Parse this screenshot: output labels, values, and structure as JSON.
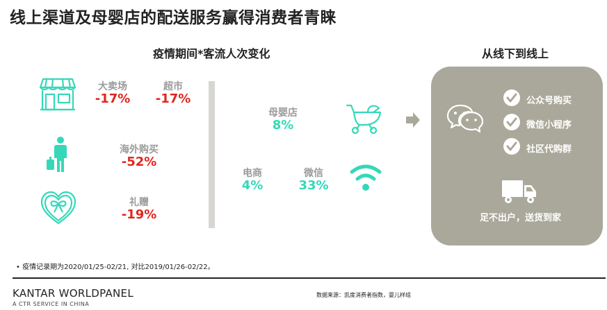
{
  "title": "线上渠道及母婴店的配送服务赢得消费者青睐",
  "left_section": {
    "title": "疫情期间*客流人次变化",
    "items": {
      "hypermarket": {
        "label": "大卖场",
        "value": "-17%"
      },
      "supermarket": {
        "label": "超市",
        "value": "-17%"
      },
      "overseas": {
        "label": "海外购买",
        "value": "-52%"
      },
      "gift": {
        "label": "礼赠",
        "value": "-19%"
      },
      "mombaby": {
        "label": "母婴店",
        "value": "8%"
      },
      "ecommerce": {
        "label": "电商",
        "value": "4%"
      },
      "wechat": {
        "label": "微信",
        "value": "33%"
      }
    }
  },
  "right_section": {
    "title": "从线下到线上",
    "checks": [
      "公众号购买",
      "微信小程序",
      "社区代购群"
    ],
    "delivery_text": "足不出户，送货到家"
  },
  "footnote": "•   疫情记录期为2020/01/25-02/21, 对比2019/01/26-02/22。",
  "footer": {
    "brand": "KANTAR WORLDPANEL",
    "brand_sub": "A CTR SERVICE IN CHINA",
    "source": "数据来源：凯度消费者指数，婴儿样组"
  },
  "colors": {
    "negative": "#e0261d",
    "positive": "#35d8b9",
    "panel": "#a9a89a",
    "divider": "#d7d6d0"
  },
  "icons": [
    "store-icon",
    "traveler-icon",
    "gift-heart-icon",
    "stroller-icon",
    "wifi-icon",
    "arrow-right-icon",
    "wechat-icon",
    "check-icon",
    "truck-icon"
  ]
}
